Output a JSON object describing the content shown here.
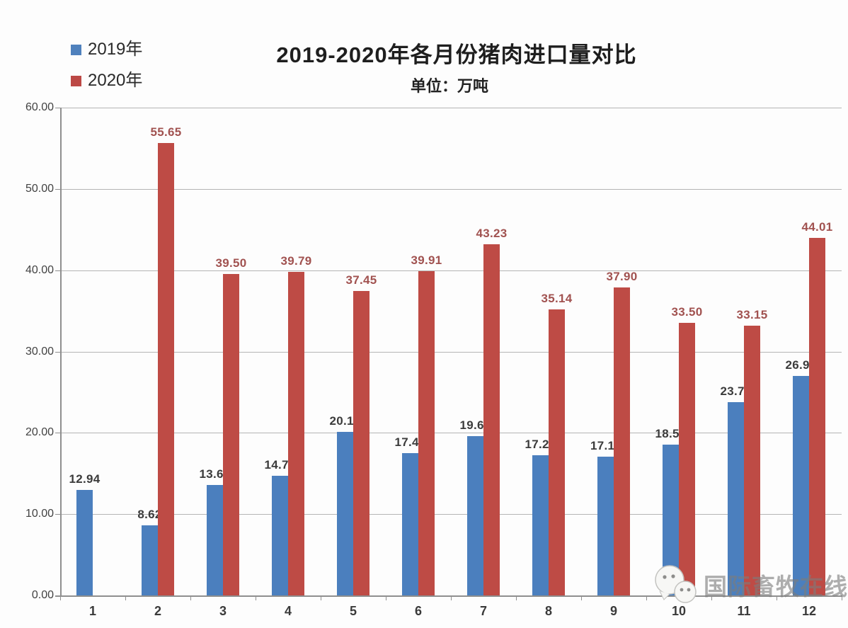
{
  "title": "2019-2020年各月份猪肉进口量对比",
  "subtitle": "单位：万吨",
  "legend": {
    "items": [
      {
        "label": "2019年",
        "color": "#4F81BD"
      },
      {
        "label": "2020年",
        "color": "#BC4845"
      }
    ]
  },
  "watermark": {
    "text": "国际畜牧在线",
    "icon": "wechat-bubbles-icon"
  },
  "colors": {
    "bar_2019": "#4B7FBE",
    "bar_2020": "#BE4B45",
    "gridline": "#b5b5b5",
    "axis": "#8f8f8f"
  },
  "chart_data": {
    "type": "bar",
    "title": "2019-2020年各月份猪肉进口量对比",
    "subtitle": "单位：万吨",
    "xlabel": "",
    "ylabel": "",
    "unit": "万吨",
    "categories": [
      "1",
      "2",
      "3",
      "4",
      "5",
      "6",
      "7",
      "8",
      "9",
      "10",
      "11",
      "12"
    ],
    "series": [
      {
        "name": "2019年",
        "color": "#4B7FBE",
        "label_color": "#3b3b3b",
        "values": [
          12.94,
          8.62,
          13.6,
          14.74,
          20.12,
          17.47,
          19.63,
          17.26,
          17.11,
          18.56,
          23.79,
          26.98
        ]
      },
      {
        "name": "2020年",
        "color": "#BE4B45",
        "label_color": "#a15250",
        "values": [
          null,
          55.65,
          39.5,
          39.79,
          37.45,
          39.91,
          43.23,
          35.14,
          37.9,
          33.5,
          33.15,
          44.01
        ]
      }
    ],
    "ylim": [
      0,
      60
    ],
    "ytick_step": 10,
    "ytick_labels": [
      "0.00",
      "10.00",
      "20.00",
      "30.00",
      "40.00",
      "50.00",
      "60.00"
    ],
    "grid": true,
    "legend_position": "top-left",
    "data_labels": true
  }
}
